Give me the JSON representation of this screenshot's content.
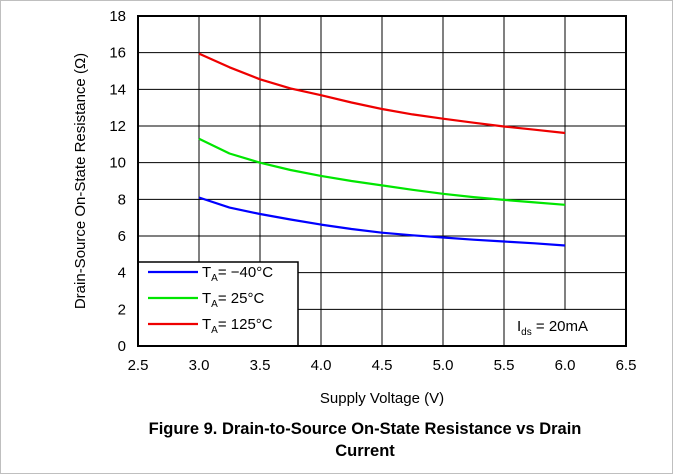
{
  "chart_data": {
    "type": "line",
    "xlabel": "Supply Voltage (V)",
    "ylabel": "Drain-Source On-State Resistance (Ω)",
    "xlim": [
      2.5,
      6.5
    ],
    "ylim": [
      0,
      18
    ],
    "xticks": [
      "2.5",
      "3.0",
      "3.5",
      "4.0",
      "4.5",
      "5.0",
      "5.5",
      "6.0",
      "6.5"
    ],
    "yticks": [
      "0",
      "2",
      "4",
      "6",
      "8",
      "10",
      "12",
      "14",
      "16",
      "18"
    ],
    "grid": true,
    "legend_position": "bottom-left",
    "series": [
      {
        "name_main": "T",
        "name_sub": "A",
        "name_rest": "= −40°C",
        "color": "#0000ff",
        "x": [
          3.0,
          3.25,
          3.5,
          3.75,
          4.0,
          4.25,
          4.5,
          4.75,
          5.0,
          5.25,
          5.5,
          5.75,
          6.0
        ],
        "y": [
          8.1,
          7.55,
          7.2,
          6.9,
          6.62,
          6.38,
          6.18,
          6.04,
          5.92,
          5.8,
          5.7,
          5.6,
          5.48
        ]
      },
      {
        "name_main": "T",
        "name_sub": "A",
        "name_rest": "= 25°C",
        "color": "#00e600",
        "x": [
          3.0,
          3.25,
          3.5,
          3.75,
          4.0,
          4.25,
          4.5,
          4.75,
          5.0,
          5.25,
          5.5,
          5.75,
          6.0
        ],
        "y": [
          11.3,
          10.5,
          10.0,
          9.6,
          9.28,
          9.0,
          8.76,
          8.52,
          8.3,
          8.12,
          7.97,
          7.83,
          7.7
        ]
      },
      {
        "name_main": "T",
        "name_sub": "A",
        "name_rest": "= 125°C",
        "color": "#ee0000",
        "x": [
          3.0,
          3.25,
          3.5,
          3.75,
          4.0,
          4.25,
          4.5,
          4.75,
          5.0,
          5.25,
          5.5,
          5.75,
          6.0
        ],
        "y": [
          15.95,
          15.2,
          14.55,
          14.05,
          13.68,
          13.28,
          12.93,
          12.63,
          12.4,
          12.18,
          11.97,
          11.8,
          11.62
        ]
      }
    ],
    "annotation": {
      "main": "I",
      "sub": "ds",
      "rest": " = 20mA"
    }
  },
  "caption": {
    "line1": "Figure 9. Drain-to-Source On-State Resistance vs Drain",
    "line2": "Current"
  }
}
